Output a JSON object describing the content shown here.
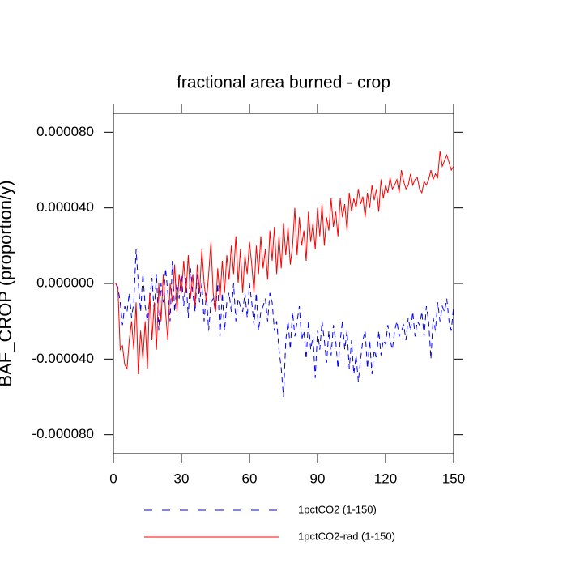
{
  "chart_data": {
    "type": "line",
    "title": "fractional area burned - crop",
    "y_label": "BAF_CROP  (proportion/y)",
    "xlim": [
      0,
      150
    ],
    "xticks": [
      0,
      30,
      60,
      90,
      120,
      150
    ],
    "ylim": [
      -9e-05,
      9e-05
    ],
    "yticks": [
      {
        "value": -8e-05,
        "label": "-0.000080"
      },
      {
        "value": -4e-05,
        "label": "-0.000040"
      },
      {
        "value": 0,
        "label": "0.000000"
      },
      {
        "value": 4e-05,
        "label": "0.000040"
      },
      {
        "value": 8e-05,
        "label": "0.000080"
      }
    ],
    "x": [
      1,
      2,
      3,
      4,
      5,
      6,
      7,
      8,
      9,
      10,
      11,
      12,
      13,
      14,
      15,
      16,
      17,
      18,
      19,
      20,
      21,
      22,
      23,
      24,
      25,
      26,
      27,
      28,
      29,
      30,
      31,
      32,
      33,
      34,
      35,
      36,
      37,
      38,
      39,
      40,
      41,
      42,
      43,
      44,
      45,
      46,
      47,
      48,
      49,
      50,
      51,
      52,
      53,
      54,
      55,
      56,
      57,
      58,
      59,
      60,
      61,
      62,
      63,
      64,
      65,
      66,
      67,
      68,
      69,
      70,
      71,
      72,
      73,
      74,
      75,
      76,
      77,
      78,
      79,
      80,
      81,
      82,
      83,
      84,
      85,
      86,
      87,
      88,
      89,
      90,
      91,
      92,
      93,
      94,
      95,
      96,
      97,
      98,
      99,
      100,
      101,
      102,
      103,
      104,
      105,
      106,
      107,
      108,
      109,
      110,
      111,
      112,
      113,
      114,
      115,
      116,
      117,
      118,
      119,
      120,
      121,
      122,
      123,
      124,
      125,
      126,
      127,
      128,
      129,
      130,
      131,
      132,
      133,
      134,
      135,
      136,
      137,
      138,
      139,
      140,
      141,
      142,
      143,
      144,
      145,
      146,
      147,
      148,
      149,
      150
    ],
    "series": [
      {
        "name": "1pctCO2 (1-150)",
        "color": "#0000ff",
        "dash": true,
        "values": [
          0,
          -2e-06,
          -1e-05,
          -2.2e-05,
          -1.2e-05,
          -1.5e-05,
          -5e-06,
          -1.8e-05,
          -1e-05,
          1.8e-05,
          0,
          -1.5e-05,
          5e-06,
          -1.2e-05,
          -2e-05,
          -8e-06,
          3e-06,
          -1.5e-05,
          5e-06,
          -2.5e-05,
          0,
          -1e-05,
          8e-06,
          -5e-06,
          -2e-05,
          1.2e-05,
          -1.5e-05,
          0,
          -8e-06,
          5e-06,
          -1.2e-05,
          3e-06,
          -1.8e-05,
          8e-06,
          -5e-06,
          -1.5e-05,
          5e-06,
          -1e-05,
          0,
          -2e-05,
          -5e-06,
          -2.5e-05,
          -1e-05,
          -8e-06,
          -1.5e-05,
          0,
          -2.8e-05,
          -5e-06,
          -2.5e-05,
          -1e-05,
          -5e-06,
          -1.5e-05,
          0,
          -2e-05,
          -8e-06,
          -1.2e-05,
          -1.5e-05,
          -5e-06,
          -1.8e-05,
          0,
          -1e-05,
          -2.2e-05,
          -5e-06,
          -2.5e-05,
          -1.5e-05,
          -1.2e-05,
          -8e-06,
          -2e-05,
          -5e-06,
          -1e-05,
          -2.5e-05,
          -2e-05,
          -3.5e-05,
          -4.5e-05,
          -6e-05,
          -3e-05,
          -2e-05,
          -3.5e-05,
          -1.5e-05,
          -2.8e-05,
          -2e-05,
          -1.2e-05,
          -3e-05,
          -2.5e-05,
          -4e-05,
          -2e-05,
          -3.5e-05,
          -2.8e-05,
          -5e-05,
          -2.5e-05,
          -3.5e-05,
          -2e-05,
          -3e-05,
          -4.2e-05,
          -2.5e-05,
          -3.8e-05,
          -2.2e-05,
          -3e-05,
          -4.5e-05,
          -3e-05,
          -2e-05,
          -3.5e-05,
          -2.5e-05,
          -4.5e-05,
          -3e-05,
          -4.8e-05,
          -3.8e-05,
          -5.2e-05,
          -4e-05,
          -3e-05,
          -2.5e-05,
          -4.5e-05,
          -3e-05,
          -4.8e-05,
          -3.5e-05,
          -4e-05,
          -2.5e-05,
          -3.8e-05,
          -3e-05,
          -3.2e-05,
          -2.2e-05,
          -3e-05,
          -3.5e-05,
          -2.5e-05,
          -2e-05,
          -2.8e-05,
          -2.5e-05,
          -2.2e-05,
          -3e-05,
          -1.8e-05,
          -2.5e-05,
          -1.5e-05,
          -2.8e-05,
          -2e-05,
          -2.2e-05,
          -1.5e-05,
          -2.8e-05,
          -1.2e-05,
          -2e-05,
          -4e-05,
          -1.8e-05,
          -2.5e-05,
          -1e-05,
          -2e-05,
          -1.2e-05,
          -1.5e-05,
          -8e-06,
          -2e-05,
          -2.5e-05,
          -1.2e-05
        ]
      },
      {
        "name": "1pctCO2-rad (1-150)",
        "color": "#ff0000",
        "dash": false,
        "values": [
          0,
          -3e-06,
          -3.5e-05,
          -3.3e-05,
          -4.3e-05,
          -4.5e-05,
          -3e-05,
          -2e-05,
          -3.5e-05,
          -1e-05,
          -4.8e-05,
          -2.5e-05,
          -4e-05,
          -2e-05,
          -4.5e-05,
          -5e-06,
          -3e-05,
          -1e-05,
          -3.5e-05,
          0,
          -2e-05,
          5e-06,
          -1.5e-05,
          -3e-05,
          0,
          -1e-05,
          1e-05,
          -1.5e-05,
          5e-06,
          -5e-06,
          1.2e-05,
          -5e-06,
          1.5e-05,
          -8e-06,
          5e-06,
          -1.2e-05,
          1e-05,
          -5e-06,
          1.8e-05,
          0,
          -1e-05,
          5e-06,
          2.2e-05,
          -5e-06,
          -1.5e-05,
          8e-06,
          -8e-06,
          1.2e-05,
          -5e-06,
          1.5e-05,
          2e-06,
          2e-05,
          5e-06,
          2.5e-05,
          0,
          1.8e-05,
          -5e-06,
          1.5e-05,
          5e-06,
          2.2e-05,
          1e-05,
          -5e-06,
          2e-05,
          5e-06,
          2.5e-05,
          8e-06,
          1.8e-05,
          2e-06,
          2.8e-05,
          1.2e-05,
          3e-05,
          5e-06,
          2.5e-05,
          8e-06,
          3.2e-05,
          1.5e-05,
          3e-05,
          1e-05,
          2e-05,
          4e-05,
          1.5e-05,
          3.5e-05,
          2e-05,
          2.8e-05,
          1.2e-05,
          3.8e-05,
          2.2e-05,
          3.2e-05,
          1.8e-05,
          4e-05,
          2.5e-05,
          4.2e-05,
          2e-05,
          3.5e-05,
          2.8e-05,
          4.5e-05,
          3e-05,
          3.8e-05,
          2.5e-05,
          4.5e-05,
          3.5e-05,
          4.2e-05,
          2.8e-05,
          4.8e-05,
          3.8e-05,
          4.5e-05,
          4e-05,
          5e-05,
          4.2e-05,
          4.6e-05,
          3.5e-05,
          4.8e-05,
          4e-05,
          5.2e-05,
          4.4e-05,
          5e-05,
          3.8e-05,
          5.5e-05,
          4.5e-05,
          5.2e-05,
          4.8e-05,
          5.6e-05,
          5e-05,
          5.2e-05,
          5.5e-05,
          4.8e-05,
          6e-05,
          5.4e-05,
          5e-05,
          5.2e-05,
          5.8e-05,
          5.2e-05,
          5.5e-05,
          5.6e-05,
          5e-05,
          4.8e-05,
          5.4e-05,
          5.2e-05,
          5.5e-05,
          6e-05,
          5.5e-05,
          5.8e-05,
          5.6e-05,
          7e-05,
          6.2e-05,
          6.5e-05,
          6.8e-05,
          6.4e-05,
          6e-05,
          6.2e-05
        ]
      }
    ]
  }
}
